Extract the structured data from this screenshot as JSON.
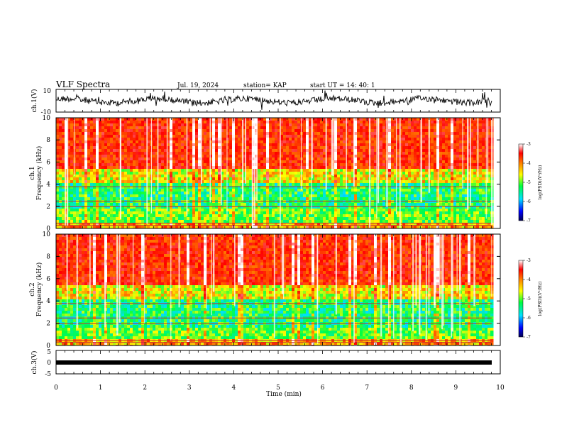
{
  "header": {
    "title": "VLF Spectra",
    "date": "Jul. 19, 2024",
    "station": "station= KAP",
    "start": "start UT = 14: 40: 1"
  },
  "chart_data": [
    {
      "type": "line",
      "name": "ch1-waveform",
      "ylabel": "ch.1(V)",
      "ylim": [
        -10,
        10
      ],
      "yticks": [
        "10",
        "-10"
      ],
      "xlim": [
        0,
        10
      ]
    },
    {
      "type": "heatmap",
      "name": "ch1-spectrogram",
      "ylabel": "ch.1\nFrequency (kHz)",
      "ylabel_line1": "ch.1",
      "ylabel_line2": "Frequency (kHz)",
      "ylim": [
        0,
        10
      ],
      "yticks": [
        "0",
        "2",
        "4",
        "6",
        "8",
        "10"
      ],
      "xlim": [
        0,
        9.8
      ],
      "colorbar": {
        "label": "log(PSD)(V²/Hz)",
        "range": [
          -7,
          -3
        ],
        "ticks": [
          "-3",
          "-4",
          "-5",
          "-6",
          "-7"
        ]
      }
    },
    {
      "type": "heatmap",
      "name": "ch2-spectrogram",
      "ylabel_line1": "ch.2",
      "ylabel_line2": "Frequency (kHz)",
      "ylim": [
        0,
        10
      ],
      "yticks": [
        "0",
        "2",
        "4",
        "6",
        "8",
        "10"
      ],
      "xlim": [
        0,
        9.8
      ],
      "colorbar": {
        "label": "log(PSD)(V²/Hz)",
        "range": [
          -7,
          -3
        ],
        "ticks": [
          "-3",
          "-4",
          "-5",
          "-6",
          "-7"
        ]
      }
    },
    {
      "type": "line",
      "name": "ch3-waveform",
      "ylabel": "ch.3(V)",
      "ylim": [
        -5,
        5
      ],
      "yticks": [
        "5",
        "0",
        "-5"
      ],
      "xlim": [
        0,
        10
      ]
    }
  ],
  "xaxis": {
    "label": "Time (min)",
    "ticks": [
      "0",
      "1",
      "2",
      "3",
      "4",
      "5",
      "6",
      "7",
      "8",
      "9",
      "10"
    ]
  }
}
